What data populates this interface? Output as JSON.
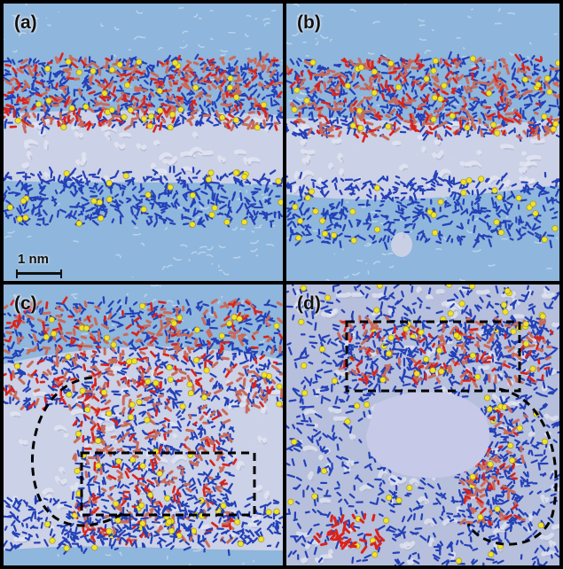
{
  "figure": {
    "panels": [
      {
        "id": "a",
        "label": "(a)"
      },
      {
        "id": "b",
        "label": "(b)"
      },
      {
        "id": "c",
        "label": "(c)"
      },
      {
        "id": "d",
        "label": "(d)"
      }
    ],
    "scale_bar": {
      "label": "1 nm"
    },
    "colors": {
      "water": "#8fb6dc",
      "water_highlight": "#d8e8f8",
      "lipid_core": "#cfd3e6",
      "headgroup_blue": "#2340b8",
      "headgroup_red": "#d8231e",
      "headgroup_salmon": "#c86a5a",
      "ion_yellow": "#f0e22a",
      "outline": "#000000"
    }
  }
}
